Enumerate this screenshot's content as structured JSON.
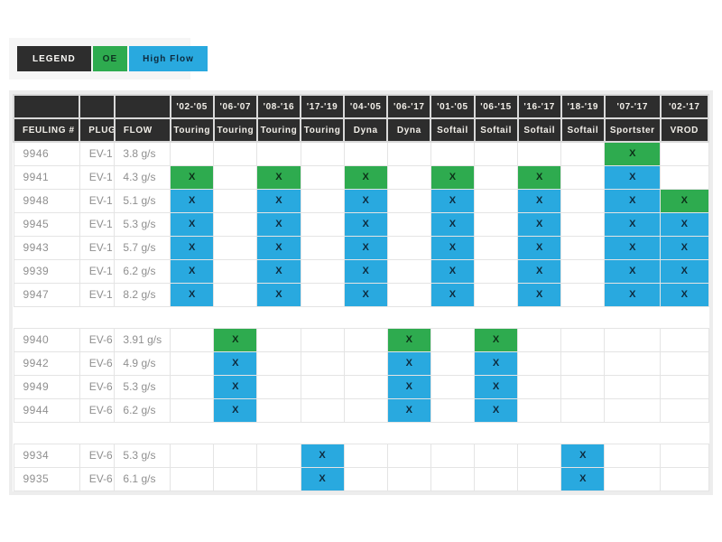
{
  "legend": {
    "title": "LEGEND",
    "items": [
      {
        "key": "oe",
        "label": "OE",
        "color": "#2eab4f"
      },
      {
        "key": "hf",
        "label": "High Flow",
        "color": "#29a9df"
      }
    ]
  },
  "table": {
    "fixed_headers": [
      "FEULING #",
      "PLUG",
      "FLOW"
    ],
    "model_columns": [
      {
        "year": "'02-'05",
        "model": "Touring"
      },
      {
        "year": "'06-'07",
        "model": "Touring"
      },
      {
        "year": "'08-'16",
        "model": "Touring"
      },
      {
        "year": "'17-'19",
        "model": "Touring"
      },
      {
        "year": "'04-'05",
        "model": "Dyna"
      },
      {
        "year": "'06-'17",
        "model": "Dyna"
      },
      {
        "year": "'01-'05",
        "model": "Softail"
      },
      {
        "year": "'06-'15",
        "model": "Softail"
      },
      {
        "year": "'16-'17",
        "model": "Softail"
      },
      {
        "year": "'18-'19",
        "model": "Softail"
      },
      {
        "year": "'07-'17",
        "model": "Sportster"
      },
      {
        "year": "'02-'17",
        "model": "VROD"
      }
    ],
    "mark_label": "X",
    "colors": {
      "oe": "#2eab4f",
      "hf": "#29a9df"
    },
    "groups": [
      {
        "rows": [
          {
            "feuling": "9946",
            "plug": "EV-1",
            "flow": "3.8 g/s",
            "marks": [
              "",
              "",
              "",
              "",
              "",
              "",
              "",
              "",
              "",
              "",
              "oe",
              ""
            ]
          },
          {
            "feuling": "9941",
            "plug": "EV-1",
            "flow": "4.3 g/s",
            "marks": [
              "oe",
              "",
              "oe",
              "",
              "oe",
              "",
              "oe",
              "",
              "oe",
              "",
              "hf",
              ""
            ]
          },
          {
            "feuling": "9948",
            "plug": "EV-1",
            "flow": "5.1 g/s",
            "marks": [
              "hf",
              "",
              "hf",
              "",
              "hf",
              "",
              "hf",
              "",
              "hf",
              "",
              "hf",
              "oe"
            ]
          },
          {
            "feuling": "9945",
            "plug": "EV-1",
            "flow": "5.3 g/s",
            "marks": [
              "hf",
              "",
              "hf",
              "",
              "hf",
              "",
              "hf",
              "",
              "hf",
              "",
              "hf",
              "hf"
            ]
          },
          {
            "feuling": "9943",
            "plug": "EV-1",
            "flow": "5.7 g/s",
            "marks": [
              "hf",
              "",
              "hf",
              "",
              "hf",
              "",
              "hf",
              "",
              "hf",
              "",
              "hf",
              "hf"
            ]
          },
          {
            "feuling": "9939",
            "plug": "EV-1",
            "flow": "6.2 g/s",
            "marks": [
              "hf",
              "",
              "hf",
              "",
              "hf",
              "",
              "hf",
              "",
              "hf",
              "",
              "hf",
              "hf"
            ]
          },
          {
            "feuling": "9947",
            "plug": "EV-1",
            "flow": "8.2 g/s",
            "marks": [
              "hf",
              "",
              "hf",
              "",
              "hf",
              "",
              "hf",
              "",
              "hf",
              "",
              "hf",
              "hf"
            ]
          }
        ]
      },
      {
        "rows": [
          {
            "feuling": "9940",
            "plug": "EV-6",
            "flow": "3.91 g/s",
            "marks": [
              "",
              "oe",
              "",
              "",
              "",
              "oe",
              "",
              "oe",
              "",
              "",
              "",
              ""
            ]
          },
          {
            "feuling": "9942",
            "plug": "EV-6",
            "flow": "4.9 g/s",
            "marks": [
              "",
              "hf",
              "",
              "",
              "",
              "hf",
              "",
              "hf",
              "",
              "",
              "",
              ""
            ]
          },
          {
            "feuling": "9949",
            "plug": "EV-6",
            "flow": "5.3 g/s",
            "marks": [
              "",
              "hf",
              "",
              "",
              "",
              "hf",
              "",
              "hf",
              "",
              "",
              "",
              ""
            ]
          },
          {
            "feuling": "9944",
            "plug": "EV-6",
            "flow": "6.2 g/s",
            "marks": [
              "",
              "hf",
              "",
              "",
              "",
              "hf",
              "",
              "hf",
              "",
              "",
              "",
              ""
            ]
          }
        ]
      },
      {
        "rows": [
          {
            "feuling": "9934",
            "plug": "EV-6",
            "flow": "5.3 g/s",
            "marks": [
              "",
              "",
              "",
              "hf",
              "",
              "",
              "",
              "",
              "",
              "hf",
              "",
              ""
            ]
          },
          {
            "feuling": "9935",
            "plug": "EV-6",
            "flow": "6.1 g/s",
            "marks": [
              "",
              "",
              "",
              "hf",
              "",
              "",
              "",
              "",
              "",
              "hf",
              "",
              ""
            ]
          }
        ]
      }
    ]
  }
}
